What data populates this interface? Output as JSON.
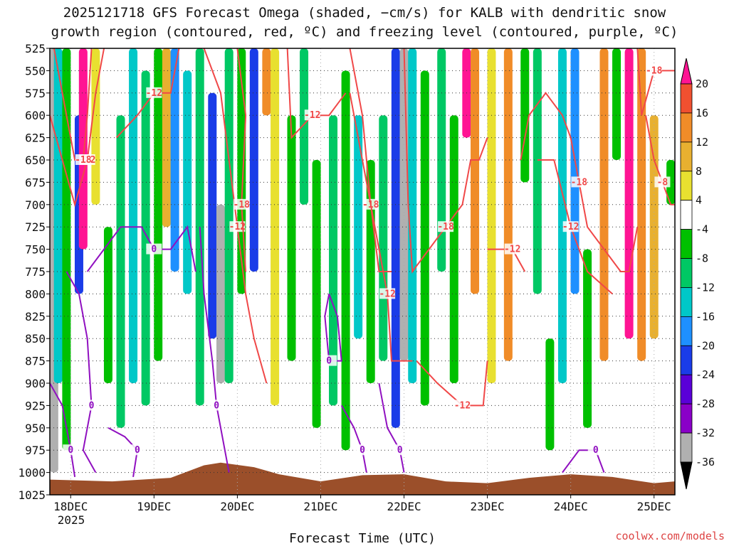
{
  "chart_data": {
    "type": "heatmap",
    "title": "2025121718 GFS Forecast Omega (shaded, −cm/s) for KALB with dendritic snow",
    "subtitle": "growth region (contoured, red, ºC) and freezing level (contoured, purple, ºC)",
    "xlabel": "Forecast Time (UTC)",
    "ylabel": "",
    "credit": "coolwx.com/models",
    "x_ticks": [
      "18DEC",
      "19DEC",
      "20DEC",
      "21DEC",
      "22DEC",
      "23DEC",
      "24DEC",
      "25DEC"
    ],
    "x_year": "2025",
    "x_range_days": [
      17.75,
      25.25
    ],
    "y_ticks": [
      525,
      550,
      575,
      600,
      625,
      650,
      675,
      700,
      725,
      750,
      775,
      800,
      825,
      850,
      875,
      900,
      925,
      950,
      975,
      1000,
      1025
    ],
    "ylim": [
      525,
      1025
    ],
    "grid": true,
    "colorbar": {
      "levels": [
        -36,
        -32,
        -28,
        -24,
        -20,
        -16,
        -12,
        -8,
        -4,
        4,
        8,
        12,
        16,
        20
      ],
      "labels": [
        "20",
        "16",
        "12",
        "8",
        "4",
        "-4",
        "-8",
        "-12",
        "-16",
        "-20",
        "-24",
        "-28",
        "-32",
        "-36"
      ],
      "colors": [
        "#000000",
        "#b0b0b0",
        "#8a00c8",
        "#5a00d8",
        "#1a3ce8",
        "#1e90ff",
        "#00c8c8",
        "#00c864",
        "#00c000",
        "#ffffff",
        "#e8e030",
        "#e8b030",
        "#f08c28",
        "#f05030",
        "#ff1493"
      ]
    },
    "omega_bands": [
      {
        "t": 17.8,
        "top": 525,
        "bottom": 1000,
        "value": -36
      },
      {
        "t": 17.85,
        "top": 525,
        "bottom": 900,
        "value": -16
      },
      {
        "t": 17.95,
        "top": 525,
        "bottom": 975,
        "value": -8
      },
      {
        "t": 18.1,
        "top": 600,
        "bottom": 800,
        "value": -24
      },
      {
        "t": 18.15,
        "top": 525,
        "bottom": 750,
        "value": 20
      },
      {
        "t": 18.3,
        "top": 525,
        "bottom": 700,
        "value": 4
      },
      {
        "t": 18.45,
        "top": 725,
        "bottom": 900,
        "value": -8
      },
      {
        "t": 18.6,
        "top": 600,
        "bottom": 950,
        "value": -12
      },
      {
        "t": 18.75,
        "top": 525,
        "bottom": 900,
        "value": -16
      },
      {
        "t": 18.9,
        "top": 550,
        "bottom": 925,
        "value": -12
      },
      {
        "t": 19.05,
        "top": 525,
        "bottom": 875,
        "value": -8
      },
      {
        "t": 19.15,
        "top": 525,
        "bottom": 725,
        "value": 8
      },
      {
        "t": 19.25,
        "top": 525,
        "bottom": 775,
        "value": -20
      },
      {
        "t": 19.4,
        "top": 550,
        "bottom": 800,
        "value": -16
      },
      {
        "t": 19.55,
        "top": 525,
        "bottom": 925,
        "value": -12
      },
      {
        "t": 19.7,
        "top": 575,
        "bottom": 850,
        "value": -24
      },
      {
        "t": 19.8,
        "top": 700,
        "bottom": 900,
        "value": -36
      },
      {
        "t": 19.9,
        "top": 525,
        "bottom": 900,
        "value": -12
      },
      {
        "t": 20.05,
        "top": 525,
        "bottom": 800,
        "value": -8
      },
      {
        "t": 20.2,
        "top": 525,
        "bottom": 775,
        "value": -24
      },
      {
        "t": 20.35,
        "top": 525,
        "bottom": 600,
        "value": 12
      },
      {
        "t": 20.45,
        "top": 525,
        "bottom": 925,
        "value": 4
      },
      {
        "t": 20.65,
        "top": 600,
        "bottom": 875,
        "value": -8
      },
      {
        "t": 20.8,
        "top": 525,
        "bottom": 700,
        "value": -12
      },
      {
        "t": 20.95,
        "top": 650,
        "bottom": 950,
        "value": -8
      },
      {
        "t": 21.15,
        "top": 600,
        "bottom": 925,
        "value": -12
      },
      {
        "t": 21.3,
        "top": 550,
        "bottom": 975,
        "value": -8
      },
      {
        "t": 21.45,
        "top": 600,
        "bottom": 850,
        "value": -16
      },
      {
        "t": 21.6,
        "top": 650,
        "bottom": 900,
        "value": -8
      },
      {
        "t": 21.75,
        "top": 600,
        "bottom": 875,
        "value": -12
      },
      {
        "t": 21.9,
        "top": 525,
        "bottom": 950,
        "value": -24
      },
      {
        "t": 22.0,
        "top": 525,
        "bottom": 875,
        "value": -36
      },
      {
        "t": 22.1,
        "top": 525,
        "bottom": 900,
        "value": -16
      },
      {
        "t": 22.25,
        "top": 550,
        "bottom": 925,
        "value": -8
      },
      {
        "t": 22.45,
        "top": 525,
        "bottom": 775,
        "value": -12
      },
      {
        "t": 22.6,
        "top": 600,
        "bottom": 900,
        "value": -8
      },
      {
        "t": 22.75,
        "top": 525,
        "bottom": 625,
        "value": 20
      },
      {
        "t": 22.85,
        "top": 525,
        "bottom": 800,
        "value": 12
      },
      {
        "t": 23.05,
        "top": 525,
        "bottom": 900,
        "value": 4
      },
      {
        "t": 23.25,
        "top": 525,
        "bottom": 875,
        "value": 12
      },
      {
        "t": 23.45,
        "top": 525,
        "bottom": 675,
        "value": -8
      },
      {
        "t": 23.6,
        "top": 525,
        "bottom": 800,
        "value": -12
      },
      {
        "t": 23.75,
        "top": 850,
        "bottom": 975,
        "value": -8
      },
      {
        "t": 23.9,
        "top": 525,
        "bottom": 900,
        "value": -16
      },
      {
        "t": 24.05,
        "top": 525,
        "bottom": 800,
        "value": -20
      },
      {
        "t": 24.2,
        "top": 750,
        "bottom": 950,
        "value": -8
      },
      {
        "t": 24.4,
        "top": 525,
        "bottom": 875,
        "value": 12
      },
      {
        "t": 24.55,
        "top": 525,
        "bottom": 650,
        "value": -8
      },
      {
        "t": 24.7,
        "top": 525,
        "bottom": 850,
        "value": 20
      },
      {
        "t": 24.85,
        "top": 525,
        "bottom": 875,
        "value": 12
      },
      {
        "t": 25.0,
        "top": 600,
        "bottom": 850,
        "value": 8
      },
      {
        "t": 25.2,
        "top": 650,
        "bottom": 700,
        "value": -8
      }
    ],
    "terrain": [
      [
        17.75,
        1008
      ],
      [
        18.5,
        1010
      ],
      [
        19.2,
        1006
      ],
      [
        19.6,
        992
      ],
      [
        19.8,
        989
      ],
      [
        20.2,
        994
      ],
      [
        20.5,
        1002
      ],
      [
        21.0,
        1010
      ],
      [
        21.5,
        1003
      ],
      [
        22.0,
        1002
      ],
      [
        22.5,
        1010
      ],
      [
        23.0,
        1012
      ],
      [
        23.5,
        1006
      ],
      [
        24.0,
        1002
      ],
      [
        24.5,
        1005
      ],
      [
        25.0,
        1012
      ],
      [
        25.25,
        1010
      ]
    ],
    "dgz_contours": [
      {
        "label": "-12",
        "points": [
          [
            17.75,
            600
          ],
          [
            17.9,
            650
          ],
          [
            18.05,
            700
          ],
          [
            18.2,
            650
          ],
          [
            18.3,
            575
          ],
          [
            18.4,
            525
          ]
        ]
      },
      {
        "label": "-18",
        "points": [
          [
            17.8,
            525
          ],
          [
            17.95,
            600
          ],
          [
            18.05,
            650
          ],
          [
            18.15,
            650
          ],
          [
            18.2,
            600
          ],
          [
            18.25,
            525
          ]
        ]
      },
      {
        "label": "-12",
        "points": [
          [
            18.55,
            625
          ],
          [
            18.8,
            600
          ],
          [
            19.0,
            575
          ],
          [
            19.2,
            575
          ],
          [
            19.3,
            525
          ]
        ]
      },
      {
        "label": "-12",
        "points": [
          [
            19.6,
            525
          ],
          [
            19.8,
            575
          ],
          [
            19.9,
            650
          ],
          [
            20.0,
            725
          ],
          [
            20.1,
            800
          ],
          [
            20.2,
            850
          ],
          [
            20.35,
            900
          ]
        ]
      },
      {
        "label": "-18",
        "points": [
          [
            20.0,
            525
          ],
          [
            20.1,
            600
          ],
          [
            20.05,
            700
          ],
          [
            20.1,
            775
          ]
        ]
      },
      {
        "label": "-12",
        "points": [
          [
            20.6,
            525
          ],
          [
            20.65,
            625
          ],
          [
            20.9,
            600
          ],
          [
            21.1,
            600
          ],
          [
            21.3,
            575
          ]
        ]
      },
      {
        "label": "-18",
        "points": [
          [
            21.35,
            525
          ],
          [
            21.5,
            600
          ],
          [
            21.6,
            700
          ],
          [
            21.7,
            775
          ],
          [
            21.85,
            775
          ]
        ]
      },
      {
        "label": "-12",
        "points": [
          [
            21.35,
            575
          ],
          [
            21.5,
            650
          ],
          [
            21.65,
            725
          ],
          [
            21.8,
            800
          ],
          [
            21.85,
            875
          ],
          [
            22.1,
            875
          ]
        ]
      },
      {
        "label": "-18",
        "points": [
          [
            22.0,
            525
          ],
          [
            22.05,
            700
          ],
          [
            22.1,
            775
          ],
          [
            22.3,
            750
          ],
          [
            22.5,
            725
          ],
          [
            22.7,
            700
          ],
          [
            22.8,
            650
          ],
          [
            22.9,
            650
          ],
          [
            23.0,
            625
          ]
        ]
      },
      {
        "label": "-12",
        "points": [
          [
            22.15,
            875
          ],
          [
            22.4,
            900
          ],
          [
            22.7,
            925
          ],
          [
            22.95,
            925
          ],
          [
            23.0,
            875
          ]
        ]
      },
      {
        "label": "-12",
        "points": [
          [
            23.0,
            750
          ],
          [
            23.3,
            750
          ],
          [
            23.45,
            775
          ]
        ]
      },
      {
        "label": "-18",
        "points": [
          [
            23.4,
            650
          ],
          [
            23.5,
            600
          ],
          [
            23.7,
            575
          ],
          [
            23.9,
            600
          ],
          [
            24.0,
            625
          ],
          [
            24.1,
            675
          ],
          [
            24.2,
            725
          ],
          [
            24.4,
            750
          ],
          [
            24.6,
            775
          ],
          [
            24.7,
            775
          ],
          [
            24.8,
            725
          ]
        ]
      },
      {
        "label": "-12",
        "points": [
          [
            23.6,
            650
          ],
          [
            23.8,
            650
          ],
          [
            24.0,
            725
          ],
          [
            24.2,
            775
          ],
          [
            24.5,
            800
          ]
        ]
      },
      {
        "label": "-8",
        "points": [
          [
            24.9,
            600
          ],
          [
            25.0,
            650
          ],
          [
            25.1,
            675
          ],
          [
            25.2,
            700
          ],
          [
            25.25,
            700
          ]
        ]
      },
      {
        "label": "-18",
        "points": [
          [
            24.8,
            525
          ],
          [
            24.85,
            600
          ],
          [
            25.0,
            550
          ],
          [
            25.25,
            550
          ]
        ]
      }
    ],
    "freezing_contours": [
      {
        "label": "0",
        "points": [
          [
            17.75,
            900
          ],
          [
            17.9,
            925
          ],
          [
            18.0,
            975
          ],
          [
            18.05,
            1005
          ]
        ]
      },
      {
        "label": "0",
        "points": [
          [
            17.95,
            775
          ],
          [
            18.1,
            800
          ],
          [
            18.2,
            850
          ],
          [
            18.25,
            925
          ],
          [
            18.15,
            975
          ],
          [
            18.3,
            1000
          ]
        ]
      },
      {
        "label": "0",
        "points": [
          [
            18.2,
            775
          ],
          [
            18.4,
            750
          ],
          [
            18.6,
            725
          ],
          [
            18.85,
            725
          ],
          [
            19.0,
            750
          ],
          [
            19.2,
            750
          ],
          [
            19.4,
            725
          ],
          [
            19.5,
            775
          ]
        ]
      },
      {
        "label": "0",
        "points": [
          [
            18.45,
            950
          ],
          [
            18.65,
            960
          ],
          [
            18.8,
            975
          ],
          [
            18.75,
            1005
          ]
        ]
      },
      {
        "label": "0",
        "points": [
          [
            19.55,
            725
          ],
          [
            19.6,
            800
          ],
          [
            19.7,
            875
          ],
          [
            19.75,
            925
          ],
          [
            19.85,
            975
          ],
          [
            19.9,
            1000
          ]
        ]
      },
      {
        "label": "0",
        "points": [
          [
            21.1,
            800
          ],
          [
            21.2,
            825
          ],
          [
            21.25,
            875
          ],
          [
            21.1,
            875
          ],
          [
            21.05,
            825
          ],
          [
            21.1,
            800
          ]
        ]
      },
      {
        "label": "0",
        "points": [
          [
            21.25,
            925
          ],
          [
            21.4,
            950
          ],
          [
            21.5,
            975
          ],
          [
            21.55,
            1000
          ]
        ]
      },
      {
        "label": "0",
        "points": [
          [
            21.7,
            900
          ],
          [
            21.8,
            950
          ],
          [
            21.95,
            975
          ],
          [
            22.0,
            1000
          ]
        ]
      },
      {
        "label": "0",
        "points": [
          [
            23.9,
            1000
          ],
          [
            24.1,
            975
          ],
          [
            24.3,
            975
          ],
          [
            24.4,
            1000
          ]
        ]
      }
    ]
  }
}
